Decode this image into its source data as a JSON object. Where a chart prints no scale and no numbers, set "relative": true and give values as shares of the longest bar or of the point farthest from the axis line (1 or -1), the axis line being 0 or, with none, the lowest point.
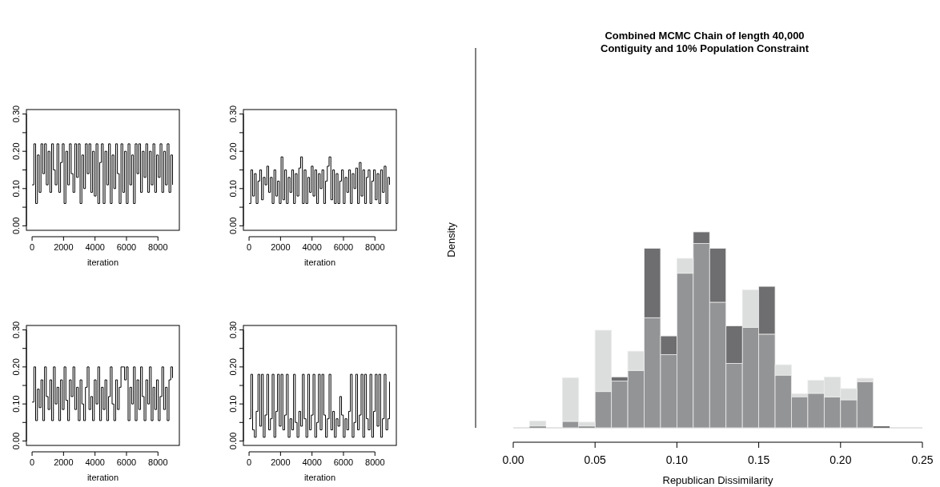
{
  "chart_data": [
    {
      "type": "line",
      "xlabel": "iteration",
      "xlim": [
        -360,
        9360
      ],
      "ylim": [
        -0.012,
        0.312
      ],
      "xticks": [
        0,
        2000,
        4000,
        6000,
        8000
      ],
      "yticks": [
        {
          "value": 0,
          "label": "0.00"
        },
        {
          "value": 0.05,
          "label": null
        },
        {
          "value": 0.1,
          "label": "0.10"
        },
        {
          "value": 0.15,
          "label": null
        },
        {
          "value": 0.2,
          "label": "0.20"
        },
        {
          "value": 0.25,
          "label": null
        },
        {
          "value": 0.3,
          "label": "0.30"
        }
      ],
      "x": [
        0,
        113,
        226,
        339,
        452,
        565,
        678,
        791,
        904,
        1017,
        1130,
        1243,
        1356,
        1469,
        1582,
        1695,
        1808,
        1921,
        2034,
        2147,
        2260,
        2373,
        2486,
        2599,
        2712,
        2825,
        2938,
        3051,
        3164,
        3277,
        3390,
        3503,
        3616,
        3729,
        3842,
        3955,
        4068,
        4181,
        4294,
        4407,
        4520,
        4633,
        4746,
        4859,
        4972,
        5085,
        5198,
        5311,
        5424,
        5537,
        5650,
        5763,
        5876,
        5989,
        6102,
        6215,
        6328,
        6441,
        6554,
        6667,
        6780,
        6893,
        7006,
        7119,
        7232,
        7345,
        7458,
        7571,
        7684,
        7797,
        7910,
        8023,
        8136,
        8249,
        8362,
        8475,
        8588,
        8701,
        8814,
        8927
      ],
      "series": [
        {
          "color": "#000000",
          "values": [
            0.11,
            0.22,
            0.06,
            0.19,
            0.09,
            0.22,
            0.14,
            0.22,
            0.11,
            0.2,
            0.09,
            0.22,
            0.15,
            0.11,
            0.22,
            0.09,
            0.17,
            0.22,
            0.06,
            0.2,
            0.11,
            0.22,
            0.14,
            0.09,
            0.22,
            0.13,
            0.22,
            0.06,
            0.19,
            0.1,
            0.22,
            0.14,
            0.22,
            0.09,
            0.2,
            0.08,
            0.22,
            0.06,
            0.17,
            0.22,
            0.06,
            0.2,
            0.11,
            0.22,
            0.06,
            0.19,
            0.1,
            0.22,
            0.14,
            0.06,
            0.22,
            0.09,
            0.2,
            0.06,
            0.22,
            0.11,
            0.19,
            0.06,
            0.22,
            0.14,
            0.22,
            0.09,
            0.2,
            0.13,
            0.22,
            0.09,
            0.2,
            0.11,
            0.22,
            0.09,
            0.19,
            0.13,
            0.22,
            0.09,
            0.2,
            0.11,
            0.22,
            0.09,
            0.19,
            0.11
          ]
        }
      ]
    },
    {
      "type": "line",
      "xlabel": "iteration",
      "xlim": [
        -360,
        9360
      ],
      "ylim": [
        -0.012,
        0.312
      ],
      "xticks": [
        0,
        2000,
        4000,
        6000,
        8000
      ],
      "yticks": [
        {
          "value": 0,
          "label": "0.00"
        },
        {
          "value": 0.05,
          "label": null
        },
        {
          "value": 0.1,
          "label": "0.10"
        },
        {
          "value": 0.15,
          "label": null
        },
        {
          "value": 0.2,
          "label": "0.20"
        },
        {
          "value": 0.25,
          "label": null
        },
        {
          "value": 0.3,
          "label": "0.30"
        }
      ],
      "x": [
        0,
        113,
        226,
        339,
        452,
        565,
        678,
        791,
        904,
        1017,
        1130,
        1243,
        1356,
        1469,
        1582,
        1695,
        1808,
        1921,
        2034,
        2147,
        2260,
        2373,
        2486,
        2599,
        2712,
        2825,
        2938,
        3051,
        3164,
        3277,
        3390,
        3503,
        3616,
        3729,
        3842,
        3955,
        4068,
        4181,
        4294,
        4407,
        4520,
        4633,
        4746,
        4859,
        4972,
        5085,
        5198,
        5311,
        5424,
        5537,
        5650,
        5763,
        5876,
        5989,
        6102,
        6215,
        6328,
        6441,
        6554,
        6667,
        6780,
        6893,
        7006,
        7119,
        7232,
        7345,
        7458,
        7571,
        7684,
        7797,
        7910,
        8023,
        8136,
        8249,
        8362,
        8475,
        8588,
        8701,
        8814,
        8927
      ],
      "series": [
        {
          "color": "#000000",
          "values": [
            0.06,
            0.15,
            0.08,
            0.14,
            0.06,
            0.12,
            0.15,
            0.07,
            0.13,
            0.11,
            0.16,
            0.09,
            0.13,
            0.06,
            0.15,
            0.08,
            0.12,
            0.06,
            0.185,
            0.07,
            0.15,
            0.06,
            0.13,
            0.09,
            0.15,
            0.06,
            0.14,
            0.08,
            0.155,
            0.185,
            0.06,
            0.15,
            0.06,
            0.13,
            0.09,
            0.16,
            0.08,
            0.15,
            0.06,
            0.14,
            0.1,
            0.15,
            0.06,
            0.12,
            0.16,
            0.185,
            0.07,
            0.15,
            0.06,
            0.14,
            0.06,
            0.12,
            0.15,
            0.06,
            0.13,
            0.09,
            0.15,
            0.06,
            0.14,
            0.1,
            0.155,
            0.06,
            0.17,
            0.08,
            0.15,
            0.06,
            0.13,
            0.15,
            0.06,
            0.12,
            0.15,
            0.07,
            0.14,
            0.06,
            0.15,
            0.09,
            0.16,
            0.06,
            0.13,
            0.11
          ]
        }
      ]
    },
    {
      "type": "line",
      "xlabel": "iteration",
      "xlim": [
        -360,
        9360
      ],
      "ylim": [
        -0.012,
        0.312
      ],
      "xticks": [
        0,
        2000,
        4000,
        6000,
        8000
      ],
      "yticks": [
        {
          "value": 0,
          "label": "0.00"
        },
        {
          "value": 0.05,
          "label": null
        },
        {
          "value": 0.1,
          "label": "0.10"
        },
        {
          "value": 0.15,
          "label": null
        },
        {
          "value": 0.2,
          "label": "0.20"
        },
        {
          "value": 0.25,
          "label": null
        },
        {
          "value": 0.3,
          "label": "0.30"
        }
      ],
      "x": [
        0,
        113,
        226,
        339,
        452,
        565,
        678,
        791,
        904,
        1017,
        1130,
        1243,
        1356,
        1469,
        1582,
        1695,
        1808,
        1921,
        2034,
        2147,
        2260,
        2373,
        2486,
        2599,
        2712,
        2825,
        2938,
        3051,
        3164,
        3277,
        3390,
        3503,
        3616,
        3729,
        3842,
        3955,
        4068,
        4181,
        4294,
        4407,
        4520,
        4633,
        4746,
        4859,
        4972,
        5085,
        5198,
        5311,
        5424,
        5537,
        5650,
        5763,
        5876,
        5989,
        6102,
        6215,
        6328,
        6441,
        6554,
        6667,
        6780,
        6893,
        7006,
        7119,
        7232,
        7345,
        7458,
        7571,
        7684,
        7797,
        7910,
        8023,
        8136,
        8249,
        8362,
        8475,
        8588,
        8701,
        8814,
        8927
      ],
      "series": [
        {
          "color": "#000000",
          "values": [
            0.105,
            0.2,
            0.055,
            0.14,
            0.09,
            0.165,
            0.055,
            0.2,
            0.12,
            0.085,
            0.165,
            0.055,
            0.2,
            0.1,
            0.145,
            0.055,
            0.165,
            0.085,
            0.2,
            0.11,
            0.055,
            0.165,
            0.12,
            0.2,
            0.085,
            0.145,
            0.055,
            0.165,
            0.1,
            0.055,
            0.145,
            0.2,
            0.085,
            0.12,
            0.055,
            0.165,
            0.1,
            0.2,
            0.055,
            0.145,
            0.085,
            0.165,
            0.055,
            0.12,
            0.2,
            0.1,
            0.055,
            0.165,
            0.085,
            0.145,
            0.2,
            0.2,
            0.165,
            0.2,
            0.055,
            0.145,
            0.1,
            0.2,
            0.055,
            0.165,
            0.085,
            0.2,
            0.12,
            0.055,
            0.165,
            0.1,
            0.2,
            0.055,
            0.145,
            0.085,
            0.165,
            0.055,
            0.12,
            0.2,
            0.085,
            0.145,
            0.055,
            0.165,
            0.2,
            0.17
          ]
        }
      ]
    },
    {
      "type": "line",
      "xlabel": "iteration",
      "xlim": [
        -360,
        9360
      ],
      "ylim": [
        -0.012,
        0.312
      ],
      "xticks": [
        0,
        2000,
        4000,
        6000,
        8000
      ],
      "yticks": [
        {
          "value": 0,
          "label": "0.00"
        },
        {
          "value": 0.05,
          "label": null
        },
        {
          "value": 0.1,
          "label": "0.10"
        },
        {
          "value": 0.15,
          "label": null
        },
        {
          "value": 0.2,
          "label": "0.20"
        },
        {
          "value": 0.25,
          "label": null
        },
        {
          "value": 0.3,
          "label": "0.30"
        }
      ],
      "x": [
        0,
        113,
        226,
        339,
        452,
        565,
        678,
        791,
        904,
        1017,
        1130,
        1243,
        1356,
        1469,
        1582,
        1695,
        1808,
        1921,
        2034,
        2147,
        2260,
        2373,
        2486,
        2599,
        2712,
        2825,
        2938,
        3051,
        3164,
        3277,
        3390,
        3503,
        3616,
        3729,
        3842,
        3955,
        4068,
        4181,
        4294,
        4407,
        4520,
        4633,
        4746,
        4859,
        4972,
        5085,
        5198,
        5311,
        5424,
        5537,
        5650,
        5763,
        5876,
        5989,
        6102,
        6215,
        6328,
        6441,
        6554,
        6667,
        6780,
        6893,
        7006,
        7119,
        7232,
        7345,
        7458,
        7571,
        7684,
        7797,
        7910,
        8023,
        8136,
        8249,
        8362,
        8475,
        8588,
        8701,
        8814,
        8927
      ],
      "series": [
        {
          "color": "#000000",
          "values": [
            0.06,
            0.18,
            0.03,
            0.01,
            0.08,
            0.18,
            0.04,
            0.18,
            0.01,
            0.07,
            0.18,
            0.03,
            0.06,
            0.18,
            0.01,
            0.08,
            0.18,
            0.04,
            0.18,
            0.03,
            0.07,
            0.18,
            0.01,
            0.06,
            0.03,
            0.18,
            0.05,
            0.01,
            0.08,
            0.04,
            0.18,
            0.06,
            0.01,
            0.18,
            0.03,
            0.07,
            0.18,
            0.01,
            0.05,
            0.18,
            0.03,
            0.18,
            0.07,
            0.01,
            0.06,
            0.18,
            0.03,
            0.08,
            0.01,
            0.06,
            0.04,
            0.12,
            0.07,
            0.01,
            0.06,
            0.03,
            0.08,
            0.18,
            0.01,
            0.05,
            0.18,
            0.03,
            0.07,
            0.18,
            0.01,
            0.18,
            0.06,
            0.03,
            0.18,
            0.01,
            0.08,
            0.18,
            0.04,
            0.18,
            0.01,
            0.06,
            0.18,
            0.03,
            0.06,
            0.16
          ]
        }
      ]
    },
    {
      "type": "bar",
      "title": "Combined MCMC Chain of length 40,000",
      "subtitle": "Contiguity and 10% Population Constraint",
      "xlabel": "Republican Dissimilarity",
      "ylabel": "Density",
      "relative": true,
      "xlim": [
        0,
        0.25
      ],
      "xticks": [
        {
          "value": 0,
          "label": "0.00"
        },
        {
          "value": 0.05,
          "label": "0.05"
        },
        {
          "value": 0.1,
          "label": "0.10"
        },
        {
          "value": 0.15,
          "label": "0.15"
        },
        {
          "value": 0.2,
          "label": "0.20"
        },
        {
          "value": 0.25,
          "label": "0.25"
        }
      ],
      "x": [
        0.005,
        0.015,
        0.025,
        0.035,
        0.045,
        0.055,
        0.065,
        0.075,
        0.085,
        0.095,
        0.105,
        0.115,
        0.125,
        0.135,
        0.145,
        0.155,
        0.165,
        0.175,
        0.185,
        0.195,
        0.205,
        0.215,
        0.225,
        0.235,
        0.245
      ],
      "stacked": true,
      "series": [
        {
          "color": "#939496",
          "values": [
            0,
            0.009,
            0,
            0.033,
            0.009,
            0.185,
            0.239,
            0.293,
            0.562,
            0.374,
            0.789,
            0.941,
            0.641,
            0.329,
            0.513,
            0.478,
            0.269,
            0.158,
            0.176,
            0.158,
            0.143,
            0.236,
            0,
            0,
            0
          ]
        },
        {
          "color": "#dcdddd",
          "values": [
            0,
            0.026,
            0,
            0.223,
            0.02,
            0.313,
            0,
            0.098,
            0,
            0,
            0.076,
            0,
            0,
            0,
            0.191,
            0,
            0.053,
            0.016,
            0.066,
            0.101,
            0.057,
            0.017,
            0,
            0,
            0
          ]
        },
        {
          "color": "#6e6e70",
          "values": [
            0,
            0,
            0,
            0,
            0,
            0,
            0.021,
            0,
            0.354,
            0.095,
            0,
            0.059,
            0.275,
            0.191,
            0,
            0.244,
            0,
            0,
            0,
            0,
            0,
            0,
            0.008,
            0,
            0
          ]
        }
      ]
    }
  ]
}
